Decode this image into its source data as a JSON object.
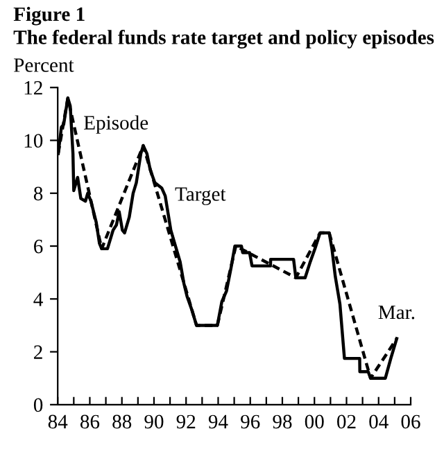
{
  "chart_data": {
    "type": "line",
    "title": "Figure 1",
    "subtitle": "The federal funds rate target and policy episodes",
    "ylabel": "Percent",
    "xlim": [
      1984,
      2006
    ],
    "ylim": [
      0,
      12
    ],
    "yticks": [
      0,
      2,
      4,
      6,
      8,
      10,
      12
    ],
    "xticks": [
      {
        "value": 1984,
        "label": "84"
      },
      {
        "value": 1985,
        "label": null
      },
      {
        "value": 1986,
        "label": "86"
      },
      {
        "value": 1987,
        "label": null
      },
      {
        "value": 1988,
        "label": "88"
      },
      {
        "value": 1989,
        "label": null
      },
      {
        "value": 1990,
        "label": "90"
      },
      {
        "value": 1991,
        "label": null
      },
      {
        "value": 1992,
        "label": "92"
      },
      {
        "value": 1993,
        "label": null
      },
      {
        "value": 1994,
        "label": "94"
      },
      {
        "value": 1995,
        "label": null
      },
      {
        "value": 1996,
        "label": "96"
      },
      {
        "value": 1997,
        "label": null
      },
      {
        "value": 1998,
        "label": "98"
      },
      {
        "value": 1999,
        "label": null
      },
      {
        "value": 2000,
        "label": "00"
      },
      {
        "value": 2001,
        "label": null
      },
      {
        "value": 2002,
        "label": "02"
      },
      {
        "value": 2003,
        "label": null
      },
      {
        "value": 2004,
        "label": "04"
      },
      {
        "value": 2005,
        "label": null
      },
      {
        "value": 2006,
        "label": "06"
      }
    ],
    "grid": false,
    "legend": false,
    "marker": "none",
    "series": [
      {
        "color": "#000000",
        "line_style": "solid",
        "x": [
          1984.03,
          1984.23,
          1984.37,
          1984.63,
          1984.78,
          1984.95,
          1985.0,
          1985.24,
          1985.44,
          1985.73,
          1985.87,
          1986.07,
          1986.4,
          1986.6,
          1986.74,
          1987.1,
          1987.45,
          1987.66,
          1987.83,
          1988.03,
          1988.17,
          1988.46,
          1988.7,
          1988.9,
          1989.18,
          1989.33,
          1989.56,
          1989.76,
          1990.05,
          1990.48,
          1990.7,
          1991.05,
          1991.34,
          1991.63,
          1991.86,
          1992.06,
          1992.35,
          1992.65,
          1993.95,
          1994.23,
          1994.52,
          1994.81,
          1995.04,
          1995.45,
          1995.53,
          1995.96,
          1996.11,
          1997.26,
          1997.27,
          1998.7,
          1998.84,
          1999.42,
          1999.71,
          2000.06,
          2000.35,
          2000.92,
          2001.09,
          2001.3,
          2001.59,
          2001.87,
          2002.82,
          2002.83,
          2003.35,
          2003.5,
          2004.42,
          2004.76,
          2005.13
        ],
        "values": [
          9.5,
          10.5,
          10.6,
          11.6,
          11.3,
          9.5,
          8.1,
          8.6,
          7.8,
          7.7,
          8.0,
          7.7,
          6.9,
          6.1,
          5.9,
          5.9,
          6.6,
          6.8,
          7.3,
          6.6,
          6.5,
          7.1,
          8.0,
          8.4,
          9.5,
          9.8,
          9.5,
          8.9,
          8.4,
          8.2,
          7.9,
          6.6,
          6.0,
          5.4,
          4.6,
          4.1,
          3.6,
          3.0,
          3.0,
          3.9,
          4.3,
          5.2,
          6.0,
          6.0,
          5.75,
          5.75,
          5.25,
          5.25,
          5.5,
          5.5,
          4.8,
          4.8,
          5.35,
          5.95,
          6.5,
          6.5,
          5.9,
          4.85,
          3.8,
          1.75,
          1.75,
          1.25,
          1.25,
          1.0,
          1.0,
          1.75,
          2.5
        ]
      },
      {
        "color": "#000000",
        "line_style": "dashed",
        "x": [
          1984.03,
          1984.63,
          1986.74,
          1989.33,
          1992.65,
          1993.95,
          1995.1,
          1998.84,
          2000.35,
          2000.92,
          2003.5,
          2005.13
        ],
        "values": [
          9.5,
          11.6,
          5.9,
          9.8,
          3.0,
          3.0,
          6.0,
          4.8,
          6.5,
          6.5,
          1.0,
          2.5
        ]
      }
    ],
    "annotations": [
      {
        "text": "Episode",
        "x": 1985.0,
        "y": 10.6
      },
      {
        "text": "Target",
        "x": 1990.7,
        "y": 7.9
      },
      {
        "text": "Mar.",
        "x": 2005.13,
        "y": 2.5
      }
    ]
  }
}
